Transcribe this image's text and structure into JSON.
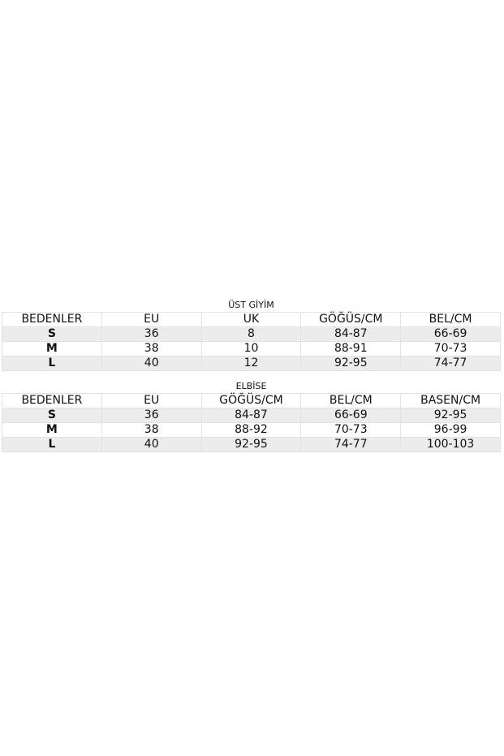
{
  "tables": [
    {
      "title": "ÜST GİYİM",
      "headers": [
        "BEDENLER",
        "EU",
        "UK",
        "GÖĞÜS/CM",
        "BEL/CM"
      ],
      "rows": [
        [
          "S",
          "36",
          "8",
          "84-87",
          "66-69"
        ],
        [
          "M",
          "38",
          "10",
          "88-91",
          "70-73"
        ],
        [
          "L",
          "40",
          "12",
          "92-95",
          "74-77"
        ]
      ]
    },
    {
      "title": "ELBİSE",
      "headers": [
        "BEDENLER",
        "EU",
        "GÖĞÜS/CM",
        "BEL/CM",
        "BASEN/CM"
      ],
      "rows": [
        [
          "S",
          "36",
          "84-87",
          "66-69",
          "92-95"
        ],
        [
          "M",
          "38",
          "88-92",
          "70-73",
          "96-99"
        ],
        [
          "L",
          "40",
          "92-95",
          "74-77",
          "100-103"
        ]
      ]
    }
  ]
}
